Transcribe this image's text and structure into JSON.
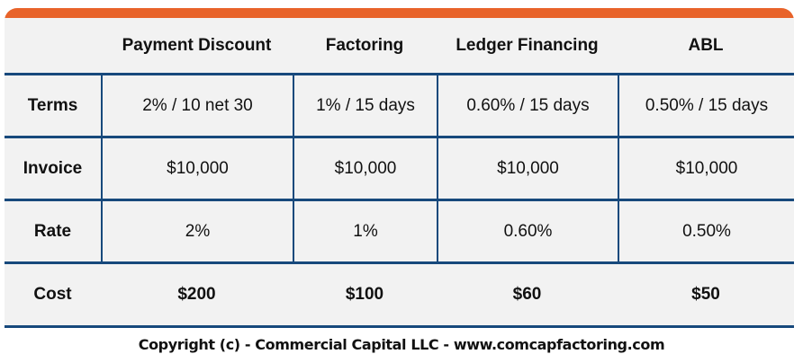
{
  "colors": {
    "accent": "#e8632a",
    "border": "#17497c",
    "background": "#f2f2f2"
  },
  "table": {
    "headers": [
      "",
      "Payment Discount",
      "Factoring",
      "Ledger Financing",
      "ABL"
    ],
    "rows": [
      [
        "Terms",
        "2% / 10 net 30",
        "1% / 15 days",
        "0.60% / 15 days",
        "0.50% / 15 days"
      ],
      [
        "Invoice",
        "$10,000",
        "$10,000",
        "$10,000",
        "$10,000"
      ],
      [
        "Rate",
        "2%",
        "1%",
        "0.60%",
        "0.50%"
      ],
      [
        "Cost",
        "$200",
        "$100",
        "$60",
        "$50"
      ]
    ]
  },
  "footer": "Copyright (c) - Commercial Capital LLC - www.comcapfactoring.com"
}
